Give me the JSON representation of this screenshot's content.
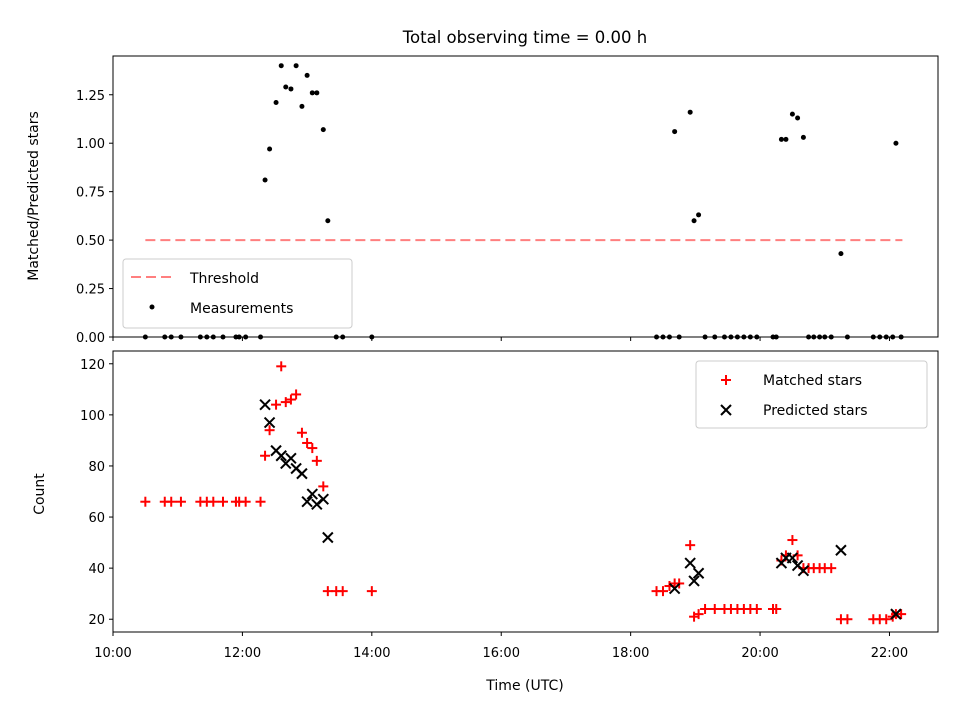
{
  "chart_data": [
    {
      "type": "scatter",
      "title": "Total observing time = 0.00 h",
      "xlabel": "",
      "ylabel": "Matched/Predicted stars",
      "ylim": [
        0,
        1.45
      ],
      "xlim": [
        10.0,
        22.75
      ],
      "yticks": [
        "0.00",
        "0.25",
        "0.50",
        "0.75",
        "1.00",
        "1.25"
      ],
      "legend_position": "lower-left",
      "threshold": {
        "name": "Threshold",
        "y": 0.5,
        "x_range": [
          10.5,
          22.2
        ],
        "color": "#ff7f7f",
        "style": "dashed"
      },
      "series": [
        {
          "name": "Measurements",
          "color": "#000000",
          "marker": "dot",
          "x": [
            10.5,
            10.8,
            10.9,
            11.05,
            11.35,
            11.45,
            11.55,
            11.7,
            11.9,
            11.95,
            12.05,
            12.28,
            12.35,
            12.42,
            12.52,
            12.6,
            12.67,
            12.75,
            12.83,
            12.92,
            13.0,
            13.08,
            13.15,
            13.25,
            13.32,
            13.45,
            13.55,
            14.0,
            18.4,
            18.5,
            18.6,
            18.68,
            18.75,
            18.92,
            18.98,
            19.05,
            19.15,
            19.3,
            19.45,
            19.55,
            19.65,
            19.75,
            19.85,
            19.95,
            20.2,
            20.25,
            20.33,
            20.4,
            20.5,
            20.58,
            20.67,
            20.75,
            20.83,
            20.92,
            21.0,
            21.1,
            21.25,
            21.35,
            21.75,
            21.85,
            21.95,
            22.05,
            22.1,
            22.18
          ],
          "y": [
            0,
            0,
            0,
            0,
            0,
            0,
            0,
            0,
            0,
            0,
            0,
            0,
            0.81,
            0.97,
            1.21,
            1.4,
            1.29,
            1.28,
            1.4,
            1.19,
            1.35,
            1.26,
            1.26,
            1.07,
            0.6,
            0,
            0,
            0,
            0,
            0,
            0,
            1.06,
            0,
            1.16,
            0.6,
            0.63,
            0,
            0,
            0,
            0,
            0,
            0,
            0,
            0,
            0,
            0,
            1.02,
            1.02,
            1.15,
            1.13,
            1.03,
            0,
            0,
            0,
            0,
            0,
            0.43,
            0,
            0,
            0,
            0,
            0,
            1.0,
            0
          ]
        }
      ]
    },
    {
      "type": "scatter",
      "title": "",
      "xlabel": "Time (UTC)",
      "ylabel": "Count",
      "ylim": [
        15,
        125
      ],
      "xlim": [
        10.0,
        22.75
      ],
      "xticks": [
        {
          "value": 10,
          "label": "10:00"
        },
        {
          "value": 12,
          "label": "12:00"
        },
        {
          "value": 14,
          "label": "14:00"
        },
        {
          "value": 16,
          "label": "16:00"
        },
        {
          "value": 18,
          "label": "18:00"
        },
        {
          "value": 20,
          "label": "20:00"
        },
        {
          "value": 22,
          "label": "22:00"
        }
      ],
      "yticks": [
        "20",
        "40",
        "60",
        "80",
        "100",
        "120"
      ],
      "legend_position": "top-right",
      "series": [
        {
          "name": "Matched stars",
          "color": "#ff0000",
          "marker": "plus",
          "x": [
            10.5,
            10.8,
            10.9,
            11.05,
            11.35,
            11.45,
            11.55,
            11.7,
            11.9,
            11.95,
            12.05,
            12.28,
            12.35,
            12.42,
            12.52,
            12.6,
            12.67,
            12.75,
            12.83,
            12.92,
            13.0,
            13.08,
            13.15,
            13.25,
            13.32,
            13.45,
            13.55,
            14.0,
            18.4,
            18.5,
            18.6,
            18.68,
            18.75,
            18.92,
            18.98,
            19.05,
            19.15,
            19.3,
            19.45,
            19.55,
            19.65,
            19.75,
            19.85,
            19.95,
            20.2,
            20.25,
            20.33,
            20.4,
            20.5,
            20.58,
            20.67,
            20.75,
            20.83,
            20.92,
            21.0,
            21.1,
            21.25,
            21.35,
            21.75,
            21.85,
            21.95,
            22.05,
            22.1,
            22.18
          ],
          "y": [
            66,
            66,
            66,
            66,
            66,
            66,
            66,
            66,
            66,
            66,
            66,
            66,
            84,
            94,
            104,
            119,
            105,
            106,
            108,
            93,
            89,
            87,
            82,
            72,
            31,
            31,
            31,
            31,
            31,
            31,
            33,
            34,
            34,
            49,
            21,
            22,
            24,
            24,
            24,
            24,
            24,
            24,
            24,
            24,
            24,
            24,
            43,
            45,
            51,
            45,
            40,
            40,
            40,
            40,
            40,
            40,
            20,
            20,
            20,
            20,
            20,
            21,
            22,
            22
          ]
        },
        {
          "name": "Predicted stars",
          "color": "#000000",
          "marker": "x",
          "x": [
            12.35,
            12.42,
            12.52,
            12.6,
            12.67,
            12.75,
            12.83,
            12.92,
            13.0,
            13.08,
            13.15,
            13.25,
            13.32,
            18.68,
            18.92,
            18.98,
            19.05,
            20.33,
            20.4,
            20.5,
            20.58,
            20.67,
            21.25,
            22.1
          ],
          "y": [
            104,
            97,
            86,
            84,
            81,
            83,
            79,
            77,
            66,
            69,
            65,
            67,
            52,
            32,
            42,
            35,
            38,
            42,
            44,
            44,
            41,
            39,
            47,
            22
          ]
        }
      ]
    }
  ]
}
